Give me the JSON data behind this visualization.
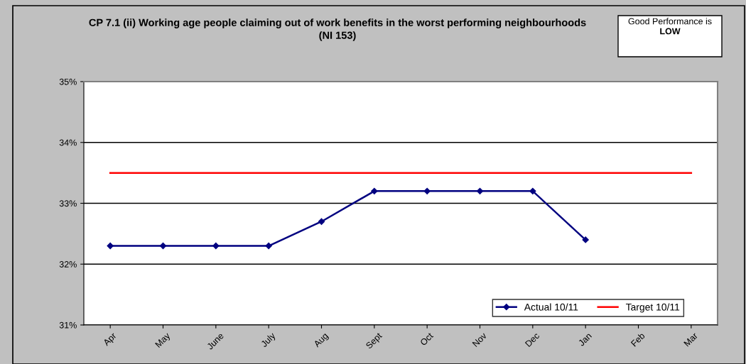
{
  "chart_data": {
    "type": "line",
    "title": "CP 7.1 (ii) Working age people claiming out of work benefits in the worst performing neighbourhoods\n(NI 153)",
    "annotations": [
      "Good Performance is",
      "LOW"
    ],
    "categories": [
      "Apr",
      "May",
      "June",
      "July",
      "Aug",
      "Sept",
      "Oct",
      "Nov",
      "Dec",
      "Jan",
      "Feb",
      "Mar"
    ],
    "series": [
      {
        "name": "Actual 10/11",
        "color": "#000080",
        "marker": "diamond",
        "values": [
          32.3,
          32.3,
          32.3,
          32.3,
          32.7,
          33.2,
          33.2,
          33.2,
          33.2,
          32.4,
          null,
          null
        ]
      },
      {
        "name": "Target 10/11",
        "color": "#ff0000",
        "marker": "none",
        "values": [
          33.5,
          33.5,
          33.5,
          33.5,
          33.5,
          33.5,
          33.5,
          33.5,
          33.5,
          33.5,
          33.5,
          33.5
        ]
      }
    ],
    "ylim": [
      31,
      35
    ],
    "yticks": [
      {
        "value": 31,
        "label": "31%"
      },
      {
        "value": 32,
        "label": "32%"
      },
      {
        "value": 33,
        "label": "33%"
      },
      {
        "value": 34,
        "label": "34%"
      },
      {
        "value": 35,
        "label": "35%"
      }
    ],
    "grid": "y",
    "legend": "bottom right",
    "line_style": "solid"
  }
}
